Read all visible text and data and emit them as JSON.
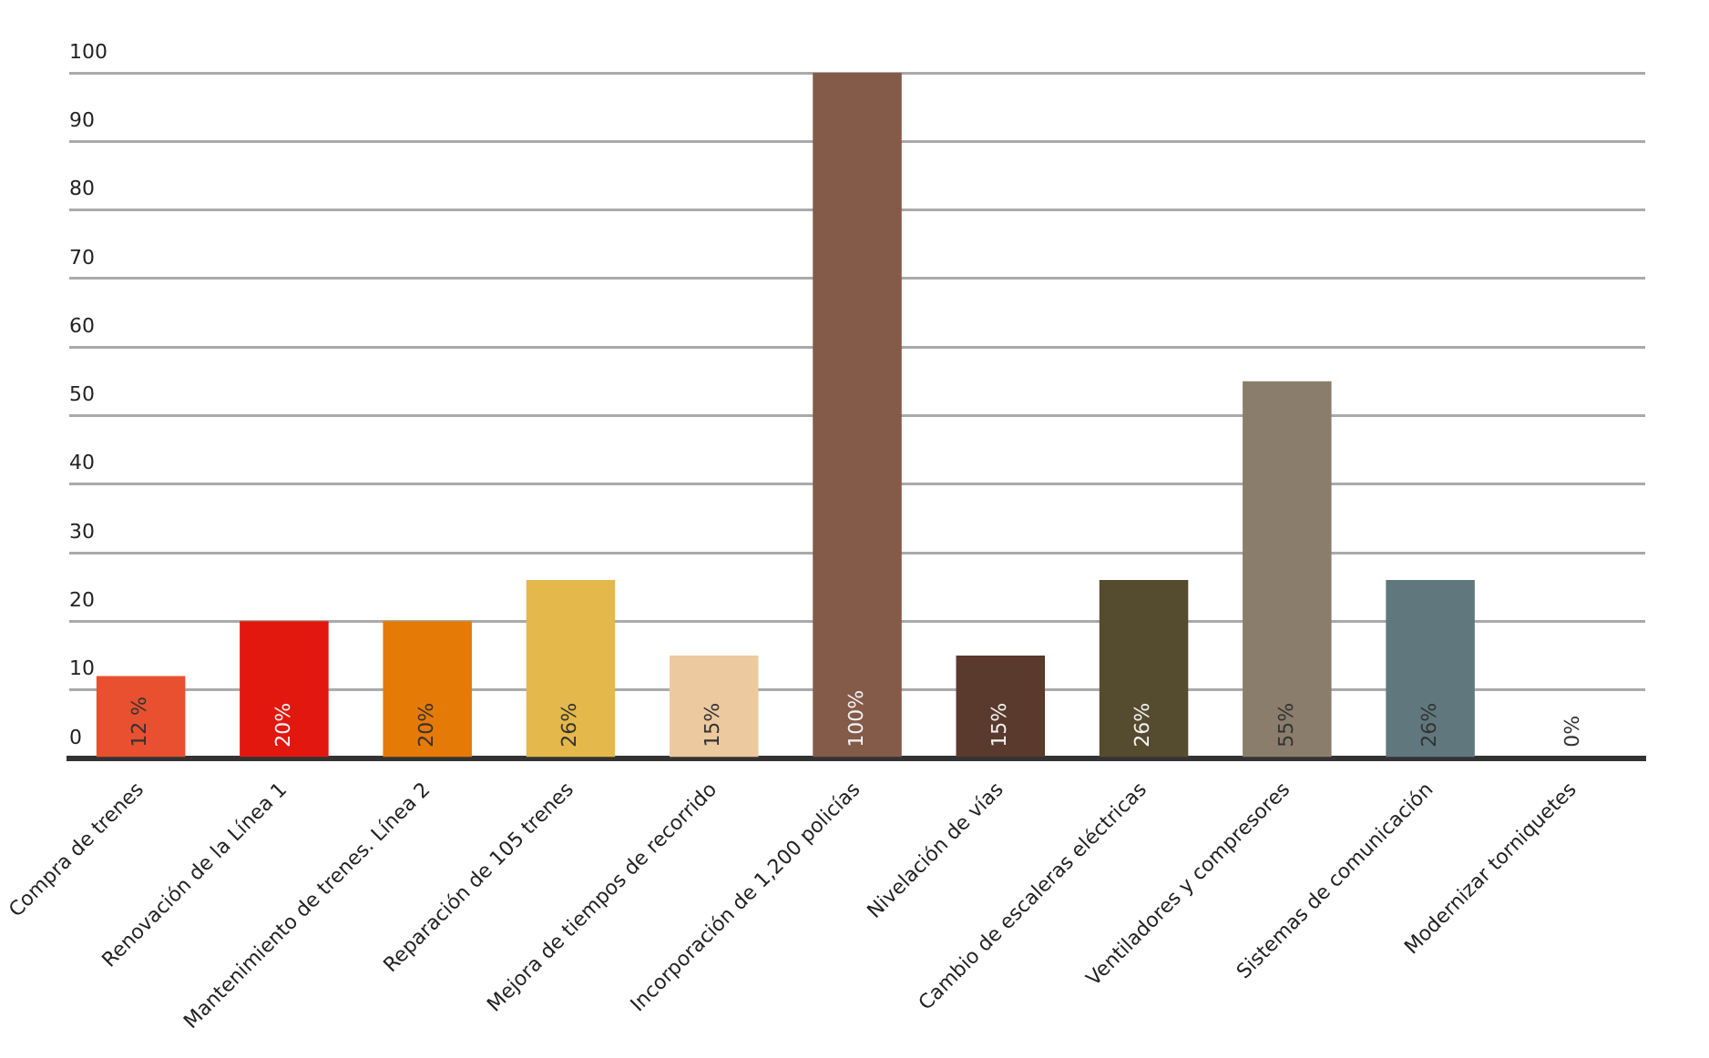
{
  "chart_data": {
    "type": "bar",
    "categories": [
      "Compra de trenes",
      "Renovación de la Línea 1",
      "Mantenimiento de trenes. Línea 2",
      "Reparación de 105 trenes",
      "Mejora de tiempos de recorrido",
      "Incorporación de 1,200 policías",
      "Nivelación de vías",
      "Cambio de escaleras eléctricas",
      "Ventiladores y compresores",
      "Sistemas de comunicación",
      "Modernizar torniquetes"
    ],
    "values": [
      12,
      20,
      20,
      26,
      15,
      100,
      15,
      26,
      55,
      26,
      0
    ],
    "colors": [
      "#e8502f",
      "#e2170e",
      "#e57a06",
      "#e4b84b",
      "#edc9a0",
      "#845a48",
      "#5a3a2c",
      "#554b2e",
      "#8a7d6b",
      "#60787d",
      "#60787d"
    ],
    "value_labels": [
      "12 %",
      "20%",
      "20%",
      "26%",
      "15%",
      "100%",
      "15%",
      "26%",
      "55%",
      "26%",
      "0%"
    ],
    "ylim": [
      0,
      100
    ],
    "yticks": [
      0,
      10,
      20,
      30,
      40,
      50,
      60,
      70,
      80,
      90,
      100
    ],
    "grid": "y",
    "legend": false
  }
}
